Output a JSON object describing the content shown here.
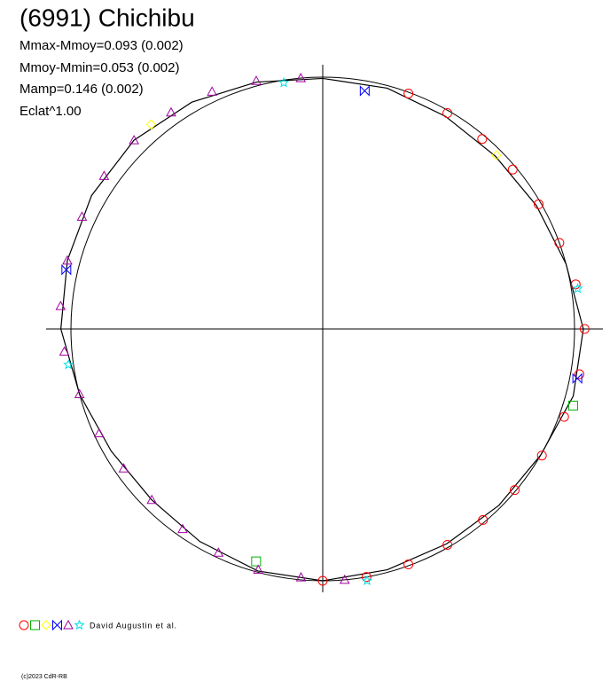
{
  "chart_data": {
    "type": "polar",
    "title": "(6991) Chichibu",
    "annotations": [
      "Mmax-Mmoy=0.093 (0.002)",
      "Mmoy-Mmin=0.053 (0.002)",
      "Mamp=0.146 (0.002)",
      "Eclat^1.00"
    ],
    "credit": "David Augustin et al.",
    "copyright": "(c)2023 CdR-RB",
    "reference_circle": 1,
    "curve": {
      "color": "#000000",
      "theta": [
        0,
        15,
        30,
        45,
        60,
        75,
        90,
        105,
        120,
        135,
        150,
        165,
        180,
        195,
        210,
        225,
        240,
        255,
        270,
        285,
        300,
        315,
        330,
        345
      ],
      "values": [
        0.995,
        0.99,
        0.975,
        0.97,
        0.98,
        1.0,
        1.035,
        1.03,
        1.0,
        0.99,
        0.985,
        0.99,
        1.0,
        0.995,
        0.975,
        0.96,
        0.97,
        1.0,
        1.04,
        1.05,
        1.06,
        1.06,
        1.04,
        1.015
      ]
    },
    "series": [
      {
        "symbol": "circle",
        "color": "#ff0000",
        "theta": [
          20,
          30,
          40,
          50,
          60,
          70,
          80,
          90,
          100,
          110,
          120,
          130,
          140,
          150,
          160,
          170,
          180
        ],
        "values": [
          0.995,
          0.99,
          0.985,
          0.985,
          0.99,
          1.0,
          1.02,
          1.04,
          1.035,
          1.02,
          1.005,
          0.995,
          0.99,
          0.99,
          0.995,
          1.0,
          1.0
        ]
      },
      {
        "symbol": "square",
        "color": "#00b000",
        "theta": [
          107,
          196
        ],
        "values": [
          1.04,
          0.96
        ]
      },
      {
        "symbol": "diamond",
        "color": "#ffff00",
        "theta": [
          45,
          320
        ],
        "values": [
          0.975,
          1.06
        ]
      },
      {
        "symbol": "bowtie",
        "color": "#0000ff",
        "theta": [
          10,
          101,
          283
        ],
        "values": [
          0.96,
          1.03,
          1.045
        ]
      },
      {
        "symbol": "triangle",
        "color": "#a000a0",
        "theta": [
          175,
          185,
          195,
          205,
          215,
          225,
          235,
          245,
          255,
          265,
          275,
          285,
          295,
          305,
          315,
          325,
          335,
          345,
          355
        ],
        "values": [
          1.0,
          0.99,
          0.99,
          0.98,
          0.97,
          0.96,
          0.965,
          0.98,
          1.0,
          1.03,
          1.045,
          1.05,
          1.055,
          1.06,
          1.06,
          1.05,
          1.04,
          1.02,
          1.0
        ]
      },
      {
        "symbol": "star",
        "color": "#00e0e0",
        "theta": [
          81,
          170,
          262,
          351
        ],
        "values": [
          1.025,
          1.015,
          1.02,
          0.99
        ]
      }
    ]
  }
}
